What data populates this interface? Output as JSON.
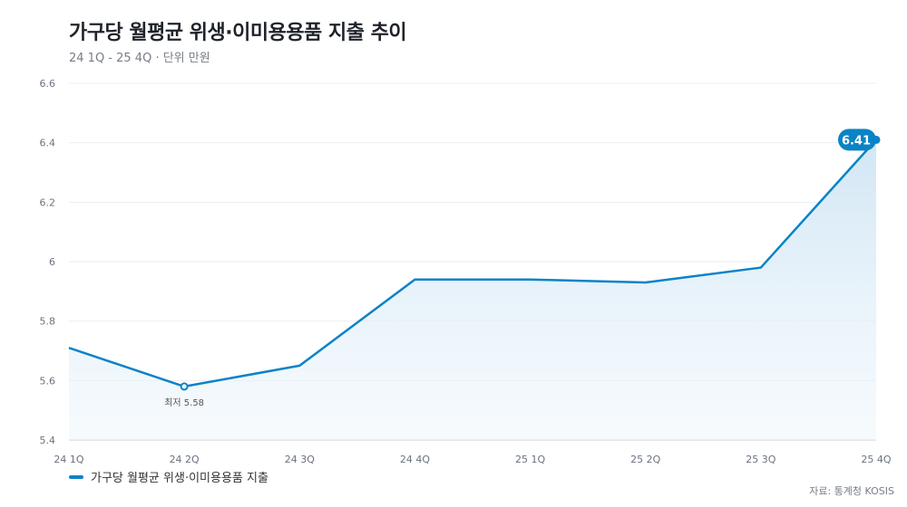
{
  "header": {
    "title": "가구당 월평균 위생·이미용용품 지출 추이",
    "subtitle": "24 1Q - 25 4Q · 단위 만원"
  },
  "legend": {
    "label": "가구당 월평균 위생·이미용용품 지출"
  },
  "source": "자료: 통계청 KOSIS",
  "annotations": {
    "min_label": "최저 5.58",
    "max_label": "6.41"
  },
  "colors": {
    "line": "#0a83c6",
    "area": "#d6e9f6",
    "grid": "#ebedf0",
    "axis_text": "#6b7280"
  },
  "chart_data": {
    "type": "area",
    "categories": [
      "24 1Q",
      "24 2Q",
      "24 3Q",
      "24 4Q",
      "25 1Q",
      "25 2Q",
      "25 3Q",
      "25 4Q"
    ],
    "series": [
      {
        "name": "가구당 월평균 위생·이미용용품 지출",
        "values": [
          5.71,
          5.58,
          5.65,
          5.94,
          5.94,
          5.93,
          5.98,
          6.41
        ]
      }
    ],
    "yticks": [
      "6.6",
      "6.4",
      "6.2",
      "6",
      "5.8",
      "5.6",
      "5.4"
    ],
    "ylim": [
      5.4,
      6.6
    ],
    "grid": true,
    "legend_position": "bottom-left"
  }
}
